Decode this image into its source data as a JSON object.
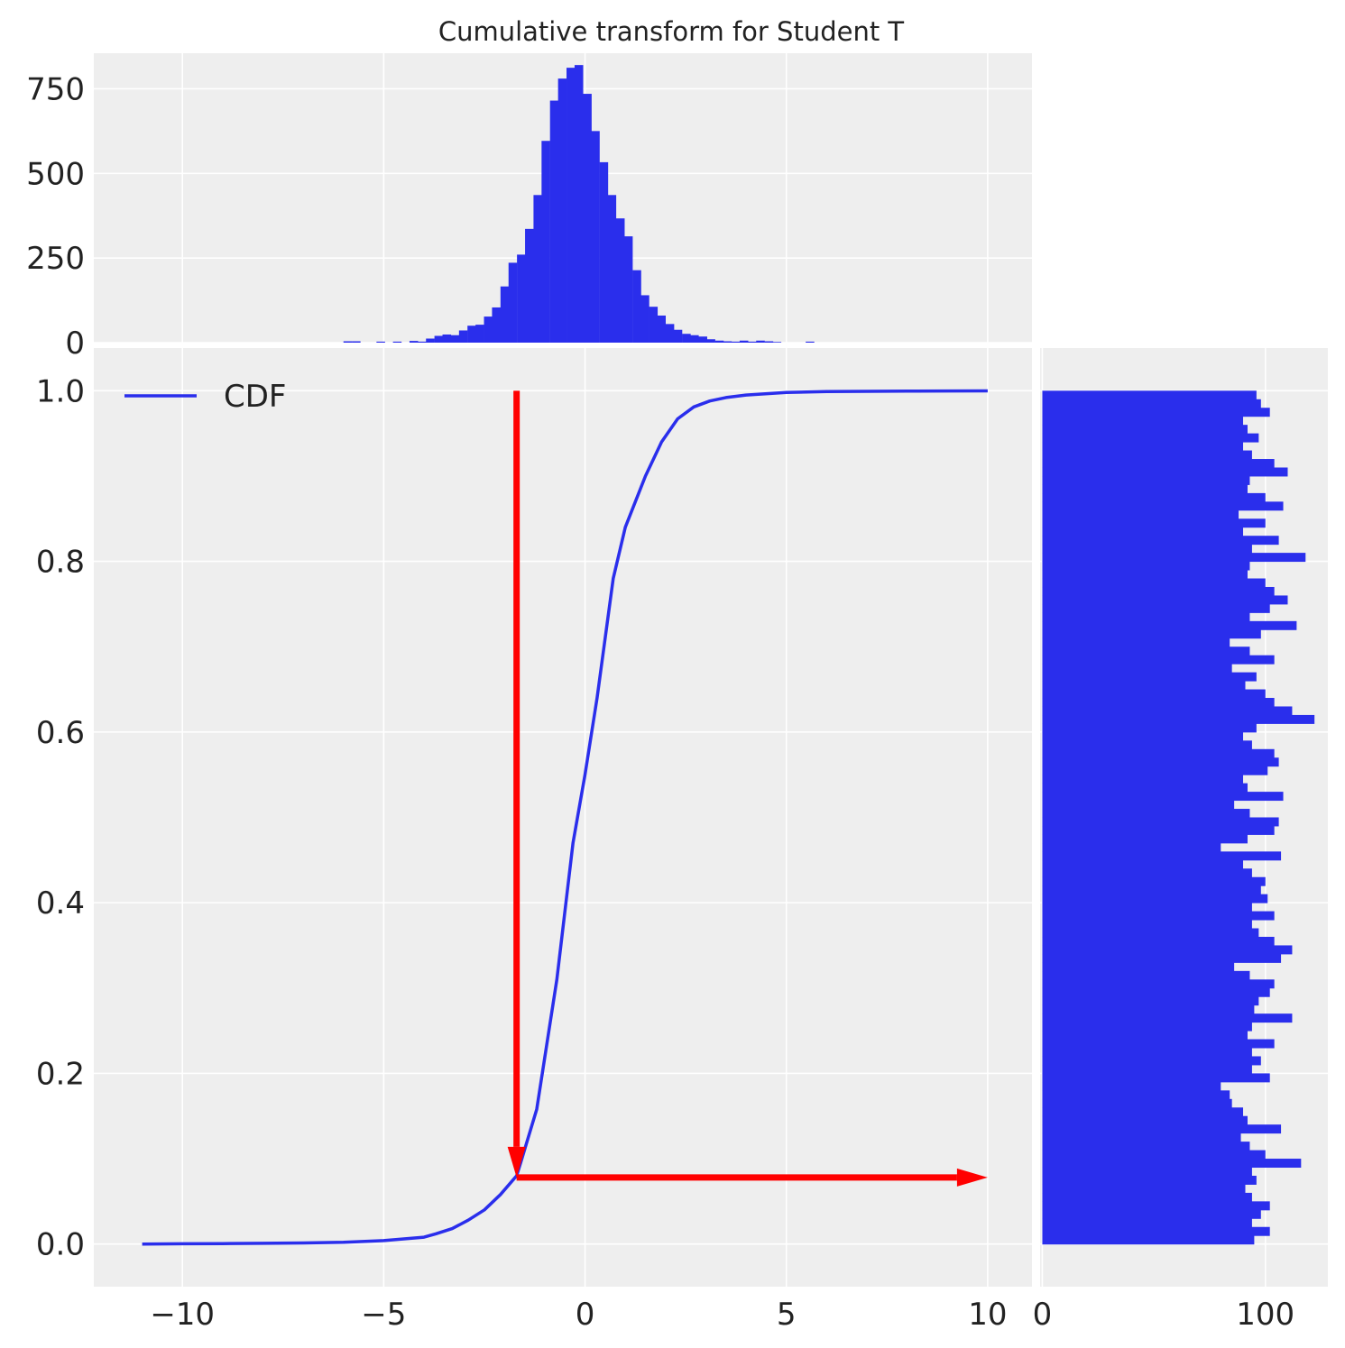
{
  "title": "Cumulative transform for Student T",
  "colors": {
    "panel_background": "#eeeeee",
    "grid": "#ffffff",
    "series": "#2a2eec",
    "arrow": "#ff0000",
    "text": "#222222"
  },
  "chart_data": [
    {
      "id": "top-histogram",
      "type": "bar",
      "title": "Cumulative transform for Student T",
      "xlim": [
        -12.2,
        11.1
      ],
      "ylim": [
        0,
        855
      ],
      "xticks": [
        -10,
        -5,
        0,
        5,
        10
      ],
      "yticks": [
        0,
        250,
        500,
        750
      ],
      "ytick_labels": [
        "0",
        "250",
        "500",
        "750"
      ],
      "grid": true,
      "bin_width": 0.205,
      "bin_left_edges": [
        -6.0,
        -5.79,
        -5.59,
        -5.38,
        -5.18,
        -4.97,
        -4.77,
        -4.56,
        -4.36,
        -4.15,
        -3.95,
        -3.74,
        -3.54,
        -3.33,
        -3.13,
        -2.92,
        -2.72,
        -2.51,
        -2.31,
        -2.1,
        -1.9,
        -1.69,
        -1.49,
        -1.28,
        -1.08,
        -0.87,
        -0.67,
        -0.46,
        -0.26,
        -0.05,
        0.15,
        0.36,
        0.56,
        0.77,
        0.97,
        1.18,
        1.38,
        1.59,
        1.79,
        2.0,
        2.2,
        2.41,
        2.61,
        2.82,
        3.02,
        3.23,
        3.43,
        3.64,
        3.84,
        4.05,
        4.25,
        4.46,
        4.66,
        4.87,
        5.07,
        5.28,
        5.48,
        5.69
      ],
      "counts": [
        4,
        4,
        0,
        0,
        3,
        0,
        3,
        0,
        5,
        3,
        12,
        20,
        24,
        22,
        36,
        50,
        53,
        77,
        104,
        166,
        236,
        260,
        336,
        436,
        596,
        715,
        780,
        812,
        820,
        735,
        625,
        533,
        436,
        367,
        314,
        214,
        140,
        106,
        80,
        55,
        38,
        26,
        22,
        18,
        10,
        6,
        4,
        3,
        6,
        3,
        6,
        4,
        2,
        0,
        0,
        0,
        3,
        0
      ]
    },
    {
      "id": "main-cdf",
      "type": "line",
      "xlim": [
        -12.2,
        11.1
      ],
      "ylim": [
        -0.05,
        1.05
      ],
      "xticks": [
        -10,
        -5,
        0,
        5,
        10
      ],
      "xtick_labels": [
        "−10",
        "−5",
        "0",
        "5",
        "10"
      ],
      "yticks": [
        0.0,
        0.2,
        0.4,
        0.6,
        0.8,
        1.0
      ],
      "ytick_labels": [
        "0.0",
        "0.2",
        "0.4",
        "0.6",
        "0.8",
        "1.0"
      ],
      "grid": true,
      "legend": {
        "placement": "top-left",
        "entries": [
          "CDF"
        ]
      },
      "series": [
        {
          "name": "CDF",
          "x": [
            -11.0,
            -10.0,
            -9.0,
            -8.0,
            -7.0,
            -6.0,
            -5.0,
            -4.5,
            -4.0,
            -3.7,
            -3.3,
            -2.9,
            -2.5,
            -2.1,
            -1.7,
            -1.6,
            -1.2,
            -0.7,
            -0.3,
            0.0,
            0.3,
            0.7,
            1.0,
            1.5,
            1.9,
            2.3,
            2.7,
            3.1,
            3.5,
            4.0,
            5.0,
            6.0,
            7.0,
            8.0,
            9.0,
            10.0
          ],
          "y": [
            0.0,
            0.0003,
            0.0005,
            0.0008,
            0.0012,
            0.002,
            0.004,
            0.006,
            0.008,
            0.012,
            0.018,
            0.028,
            0.04,
            0.058,
            0.08,
            0.095,
            0.158,
            0.31,
            0.47,
            0.55,
            0.64,
            0.78,
            0.84,
            0.9,
            0.94,
            0.967,
            0.981,
            0.988,
            0.992,
            0.995,
            0.998,
            0.999,
            0.9993,
            0.9995,
            0.9997,
            0.9998
          ]
        }
      ],
      "arrows": [
        {
          "from": [
            -1.7,
            1.0
          ],
          "to": [
            -1.7,
            0.078
          ]
        },
        {
          "from": [
            -1.7,
            0.078
          ],
          "to": [
            10.0,
            0.078
          ]
        }
      ]
    },
    {
      "id": "right-histogram",
      "type": "bar",
      "orientation": "horizontal",
      "xlim": [
        -1,
        128
      ],
      "ylim": [
        -0.05,
        1.05
      ],
      "xticks": [
        0,
        100
      ],
      "xtick_labels": [
        "0",
        "100"
      ],
      "grid": true,
      "bin_height": 0.01,
      "values": [
        95,
        102,
        94,
        98,
        102,
        94,
        91,
        96,
        94,
        116,
        100,
        93,
        89,
        107,
        92,
        90,
        85,
        84,
        80,
        102,
        94,
        98,
        94,
        104,
        92,
        94,
        112,
        95,
        97,
        102,
        104,
        93,
        86,
        107,
        112,
        104,
        97,
        94,
        104,
        94,
        101,
        98,
        100,
        94,
        90,
        107,
        80,
        92,
        104,
        106,
        93,
        86,
        108,
        92,
        90,
        101,
        106,
        104,
        94,
        90,
        96,
        122,
        112,
        104,
        100,
        91,
        96,
        85,
        104,
        93,
        84,
        98,
        114,
        93,
        102,
        110,
        104,
        100,
        92,
        93,
        118,
        94,
        106,
        90,
        100,
        88,
        108,
        100,
        92,
        93,
        110,
        104,
        94,
        90,
        97,
        92,
        90,
        102,
        98,
        96
      ]
    }
  ]
}
